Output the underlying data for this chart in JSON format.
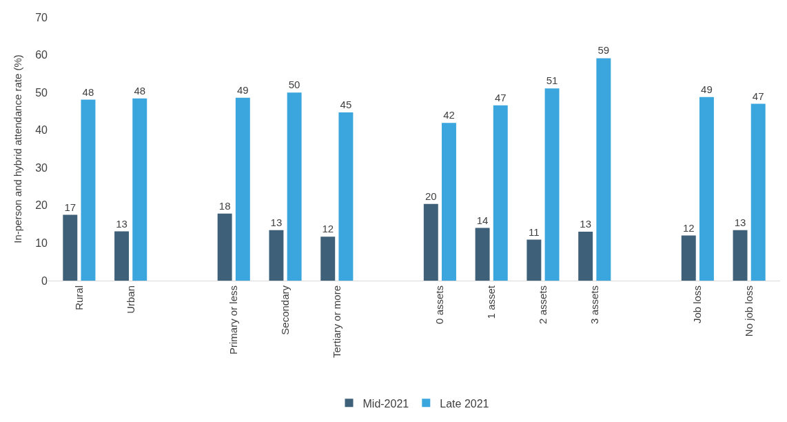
{
  "chart_data": {
    "type": "bar",
    "ylabel": "In-person and hybrid attendance rate (%)",
    "categories": [
      "Rural",
      "Urban",
      null,
      "Primary or less",
      "Secondary",
      "Tertiary or more",
      null,
      "0 assets",
      "1 asset",
      "2 assets",
      "3 assets",
      null,
      "Job loss",
      "No job loss"
    ],
    "series": [
      {
        "name": "Mid-2021",
        "color": "#3e6079",
        "values": [
          17.5,
          13.1,
          null,
          17.8,
          13.4,
          11.7,
          null,
          20.4,
          14.0,
          10.9,
          13.0,
          null,
          12.0,
          13.4
        ],
        "value_labels": [
          "17",
          "13",
          null,
          "18",
          "13",
          "12",
          null,
          "20",
          "14",
          "11",
          "13",
          null,
          "12",
          "13"
        ]
      },
      {
        "name": "Late 2021",
        "color": "#3aa6dd",
        "values": [
          48.1,
          48.4,
          null,
          48.6,
          50.0,
          44.7,
          null,
          41.9,
          46.6,
          51.1,
          59.1,
          null,
          48.8,
          47.0
        ],
        "value_labels": [
          "48",
          "48",
          null,
          "49",
          "50",
          "45",
          null,
          "42",
          "47",
          "51",
          "59",
          null,
          "49",
          "47"
        ]
      }
    ],
    "ylim": [
      0,
      70
    ],
    "yticks": [
      0,
      10,
      20,
      30,
      40,
      50,
      60,
      70
    ],
    "legend": "bottom"
  }
}
